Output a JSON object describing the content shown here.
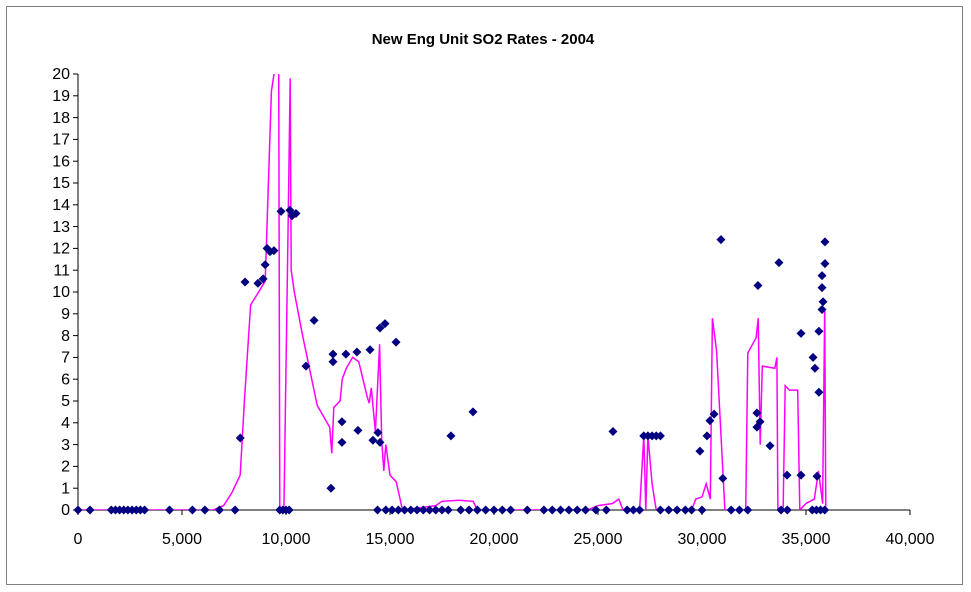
{
  "chart_data": {
    "type": "scatter",
    "title": "New Eng Unit SO2 Rates - 2004",
    "xlim": [
      0,
      40000
    ],
    "xticks": [
      0,
      {
        "value": 5000,
        "label": "5,000"
      },
      {
        "value": 10000,
        "label": "10,000"
      },
      {
        "value": 15000,
        "label": "15,000"
      },
      {
        "value": 20000,
        "label": "20,000"
      },
      {
        "value": 25000,
        "label": "25,000"
      },
      {
        "value": 30000,
        "label": "30,000"
      },
      {
        "value": 35000,
        "label": "35,000"
      },
      {
        "value": 40000,
        "label": "40,000"
      }
    ],
    "ylim": [
      0,
      20
    ],
    "yticks": [
      0,
      1,
      2,
      3,
      4,
      5,
      6,
      7,
      8,
      9,
      10,
      11,
      12,
      13,
      14,
      15,
      16,
      17,
      18,
      19,
      20
    ],
    "series": [
      {
        "type": "scatter",
        "color": "#000080",
        "x": [
          0,
          577,
          1600,
          1800,
          2000,
          2200,
          2400,
          2600,
          2800,
          3000,
          3200,
          4400,
          5500,
          6100,
          6800,
          7550,
          9700,
          9850,
          10000,
          10150,
          14400,
          14800,
          15100,
          15400,
          15700,
          16000,
          16300,
          16600,
          16900,
          17200,
          17500,
          17800,
          18400,
          18800,
          19200,
          19600,
          20000,
          20400,
          20800,
          21600,
          22400,
          22800,
          23200,
          23600,
          24000,
          24400,
          24900,
          25400,
          26400,
          26700,
          27000,
          28000,
          28400,
          28800,
          29200,
          29500,
          30000,
          31400,
          31800,
          32200,
          33800,
          34100,
          35300,
          35500,
          35700,
          35900,
          7800,
          8030,
          8650,
          8900,
          9000,
          9090,
          9230,
          9420,
          9760,
          10190,
          10290,
          10480,
          10960,
          11350,
          12160,
          12260,
          12260,
          12690,
          12690,
          12880,
          13410,
          13460,
          14040,
          14180,
          14420,
          14520,
          14520,
          14760,
          15290,
          17930,
          18990,
          25720,
          27200,
          27400,
          27600,
          27800,
          28000,
          29900,
          30240,
          30380,
          30580,
          30910,
          31000,
          32640,
          32690,
          32640,
          32790,
          33270,
          33700,
          34090,
          34760,
          34760,
          35340,
          35430,
          35530,
          35620,
          35620,
          35770,
          35770,
          35820,
          35770,
          35910,
          35910
        ],
        "values": [
          0,
          0,
          0,
          0,
          0,
          0,
          0,
          0,
          0,
          0,
          0,
          0,
          0,
          0,
          0,
          0,
          0,
          0,
          0,
          0,
          0,
          0,
          0,
          0,
          0,
          0,
          0,
          0,
          0,
          0,
          0,
          0,
          0,
          0,
          0,
          0,
          0,
          0,
          0,
          0,
          0,
          0,
          0,
          0,
          0,
          0,
          0,
          0,
          0,
          0,
          0,
          0,
          0,
          0,
          0,
          0,
          0,
          0,
          0,
          0,
          0,
          0,
          0,
          0,
          0,
          0,
          3.3,
          10.46,
          10.4,
          10.6,
          11.25,
          12,
          11.85,
          11.9,
          13.7,
          13.75,
          13.5,
          13.6,
          6.6,
          8.7,
          1.0,
          7.15,
          6.8,
          4.05,
          3.1,
          7.15,
          7.25,
          3.65,
          7.35,
          3.2,
          3.55,
          3.1,
          8.35,
          8.55,
          7.7,
          3.4,
          4.5,
          3.6,
          3.4,
          3.4,
          3.4,
          3.4,
          3.4,
          2.7,
          3.4,
          4.1,
          4.4,
          12.4,
          1.45,
          4.45,
          10.3,
          3.8,
          4.05,
          2.95,
          11.35,
          1.6,
          8.1,
          1.6,
          7.0,
          6.5,
          1.55,
          8.2,
          5.4,
          10.75,
          10.2,
          9.55,
          9.2,
          12.3,
          11.3
        ]
      },
      {
        "type": "line",
        "color": "#ff00ff",
        "x": [
          0,
          6500,
          7000,
          7400,
          7800,
          8000,
          8300,
          9000,
          9300,
          9500,
          9650,
          9700,
          9900,
          10100,
          10200,
          10250,
          10400,
          10800,
          11500,
          12100,
          12200,
          12300,
          12600,
          12700,
          12900,
          13200,
          13500,
          13900,
          14000,
          14100,
          14300,
          14500,
          14600,
          14700,
          14800,
          15000,
          15300,
          15600,
          17200,
          17500,
          18300,
          19000,
          19200,
          24500,
          25000,
          25700,
          26000,
          26200,
          27000,
          27200,
          27300,
          27400,
          27600,
          27800,
          29500,
          29700,
          30000,
          30200,
          30400,
          30500,
          30700,
          31100,
          32100,
          32200,
          32600,
          32700,
          32800,
          32900,
          33500,
          33600,
          33650,
          33900,
          34000,
          34200,
          34600,
          34700,
          35000,
          35400,
          35600,
          35800,
          35900,
          35950
        ],
        "values": [
          0,
          0,
          0.2,
          0.8,
          1.6,
          5,
          9.4,
          10.5,
          19.2,
          20.5,
          20.5,
          0,
          0,
          13,
          19.8,
          11,
          10,
          8,
          4.8,
          3.8,
          2.6,
          4.7,
          5,
          6,
          6.5,
          7,
          6.8,
          5.2,
          4.9,
          5.6,
          3.6,
          7.6,
          3.2,
          1.8,
          3,
          1.6,
          1.3,
          0,
          0.2,
          0.4,
          0.45,
          0.4,
          0,
          0,
          0.2,
          0.3,
          0.5,
          0,
          0,
          3.4,
          0,
          3.4,
          1.2,
          0,
          0,
          0.5,
          0.6,
          1.2,
          0.5,
          8.8,
          7.3,
          0,
          0,
          7.2,
          7.9,
          8.8,
          3,
          6.6,
          6.5,
          7,
          0,
          0,
          5.7,
          5.5,
          5.5,
          0,
          0.3,
          0.5,
          1.8,
          0.3,
          9.2,
          0
        ]
      }
    ]
  }
}
